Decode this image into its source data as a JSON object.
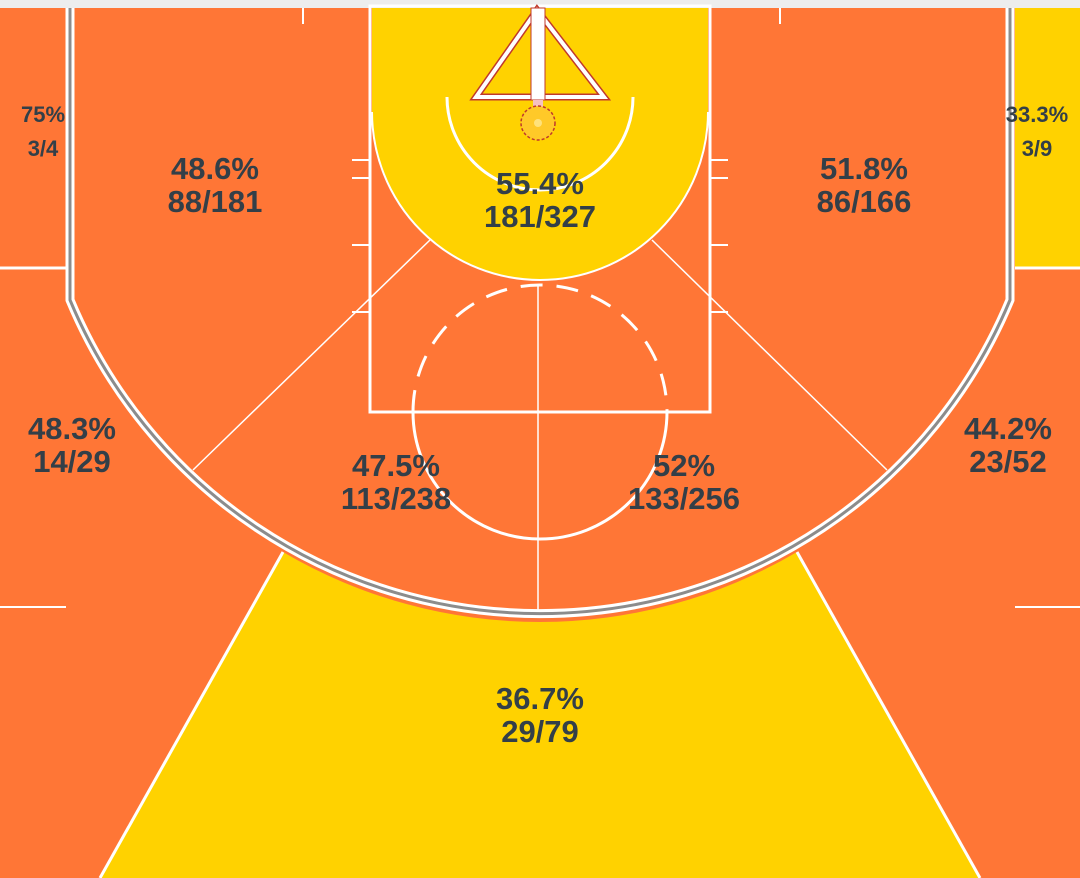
{
  "chart_data": {
    "type": "heatmap",
    "subtype": "basketball half-court shot chart by zone",
    "colors": {
      "above_average": "#FF7636",
      "below_average": "#FFD200",
      "text": "#333F48",
      "lines": "#FFFFFF",
      "three_point_line": "#8C8C8C"
    },
    "zones": [
      {
        "id": "left-corner-3",
        "pct": "75%",
        "made_attempted": "3/4",
        "made": 3,
        "attempted": 4,
        "color": "#FF7636"
      },
      {
        "id": "right-corner-3",
        "pct": "33.3%",
        "made_attempted": "3/9",
        "made": 3,
        "attempted": 9,
        "color": "#FFD200"
      },
      {
        "id": "left-baseline-mid",
        "pct": "48.6%",
        "made_attempted": "88/181",
        "made": 88,
        "attempted": 181,
        "color": "#FF7636"
      },
      {
        "id": "restricted-area",
        "pct": "55.4%",
        "made_attempted": "181/327",
        "made": 181,
        "attempted": 327,
        "color": "#FFD200"
      },
      {
        "id": "right-baseline-mid",
        "pct": "51.8%",
        "made_attempted": "86/166",
        "made": 86,
        "attempted": 166,
        "color": "#FF7636"
      },
      {
        "id": "left-wing-3",
        "pct": "48.3%",
        "made_attempted": "14/29",
        "made": 14,
        "attempted": 29,
        "color": "#FF7636"
      },
      {
        "id": "left-elbow-mid",
        "pct": "47.5%",
        "made_attempted": "113/238",
        "made": 113,
        "attempted": 238,
        "color": "#FF7636"
      },
      {
        "id": "right-elbow-mid",
        "pct": "52%",
        "made_attempted": "133/256",
        "made": 133,
        "attempted": 256,
        "color": "#FF7636"
      },
      {
        "id": "right-wing-3",
        "pct": "44.2%",
        "made_attempted": "23/52",
        "made": 23,
        "attempted": 52,
        "color": "#FF7636"
      },
      {
        "id": "top-of-key-3",
        "pct": "36.7%",
        "made_attempted": "29/79",
        "made": 29,
        "attempted": 79,
        "color": "#FFD200"
      }
    ]
  }
}
